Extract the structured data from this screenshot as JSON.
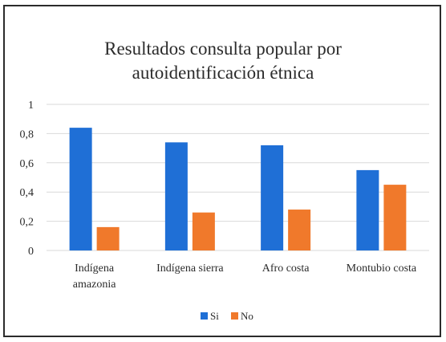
{
  "chart_data": {
    "type": "bar",
    "title": [
      "Resultados consulta popular por",
      "autoidentificación étnica"
    ],
    "categories": [
      [
        "Indígena",
        "amazonia"
      ],
      [
        "Indígena sierra"
      ],
      [
        "Afro costa"
      ],
      [
        "Montubio costa"
      ]
    ],
    "series": [
      {
        "name": "Si",
        "color": "#1f6fd6",
        "values": [
          0.84,
          0.74,
          0.72,
          0.55
        ]
      },
      {
        "name": "No",
        "color": "#f0792b",
        "values": [
          0.16,
          0.26,
          0.28,
          0.45
        ]
      }
    ],
    "ylim": [
      0,
      1
    ],
    "yticks": [
      "0",
      "0,2",
      "0,4",
      "0,6",
      "0,8",
      "1"
    ],
    "ytick_values": [
      0,
      0.2,
      0.4,
      0.6,
      0.8,
      1
    ],
    "grid": true,
    "legend": "bottom-center"
  }
}
